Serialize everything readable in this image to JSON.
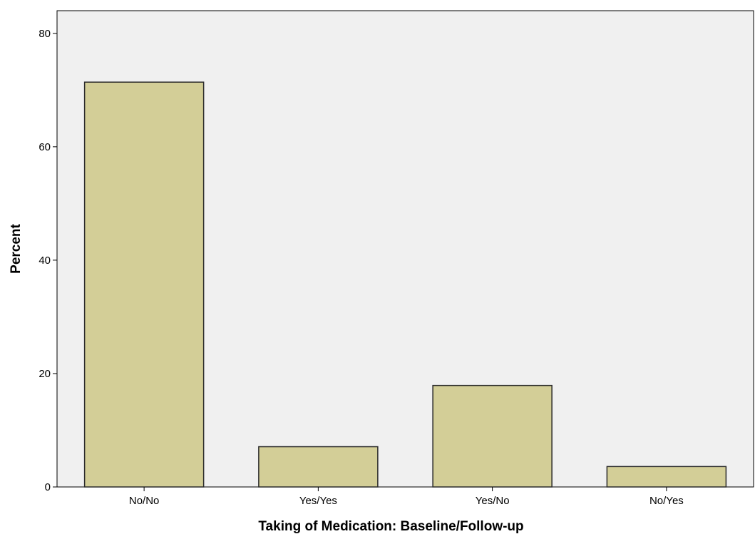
{
  "chart_data": {
    "type": "bar",
    "title": "",
    "xlabel": "Taking of Medication: Baseline/Follow-up",
    "ylabel": "Percent",
    "categories": [
      "No/No",
      "Yes/Yes",
      "Yes/No",
      "No/Yes"
    ],
    "values": [
      71.4,
      7.1,
      17.9,
      3.6
    ],
    "ylim": [
      0,
      84
    ],
    "yticks": [
      0,
      20,
      40,
      60,
      80
    ],
    "grid": false,
    "legend": "none",
    "colors": {
      "plot_background": "#f0f0f0",
      "bar_fill": "#d3ce97",
      "bar_stroke": "#2a2a2a"
    }
  }
}
